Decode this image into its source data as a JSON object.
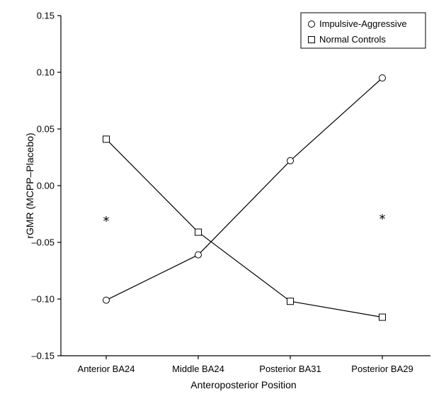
{
  "chart_data": {
    "type": "line",
    "categories": [
      "Anterior BA24",
      "Middle BA24",
      "Posterior BA31",
      "Posterior BA29"
    ],
    "series": [
      {
        "name": "Impulsive-Aggressive",
        "marker": "circle",
        "values": [
          -0.101,
          -0.061,
          0.022,
          0.095
        ]
      },
      {
        "name": "Normal Controls",
        "marker": "square",
        "values": [
          0.041,
          -0.041,
          -0.102,
          -0.116
        ]
      }
    ],
    "xlabel": "Anteroposterior Position",
    "ylabel": "rGMR (MCPP–Placebo)",
    "ylim": [
      -0.15,
      0.15
    ],
    "yticks": [
      -0.15,
      -0.1,
      -0.05,
      0.0,
      0.05,
      0.1,
      0.15
    ],
    "ytick_labels": [
      "–0.15",
      "–0.10",
      "–0.05",
      "0.00",
      "0.05",
      "0.10",
      "0.15"
    ],
    "grid": false,
    "legend_position": "top-right",
    "annotations": [
      {
        "text": "*",
        "category": "Anterior BA24",
        "y": -0.03
      },
      {
        "text": "*",
        "category": "Posterior BA29",
        "y": -0.028
      }
    ]
  }
}
